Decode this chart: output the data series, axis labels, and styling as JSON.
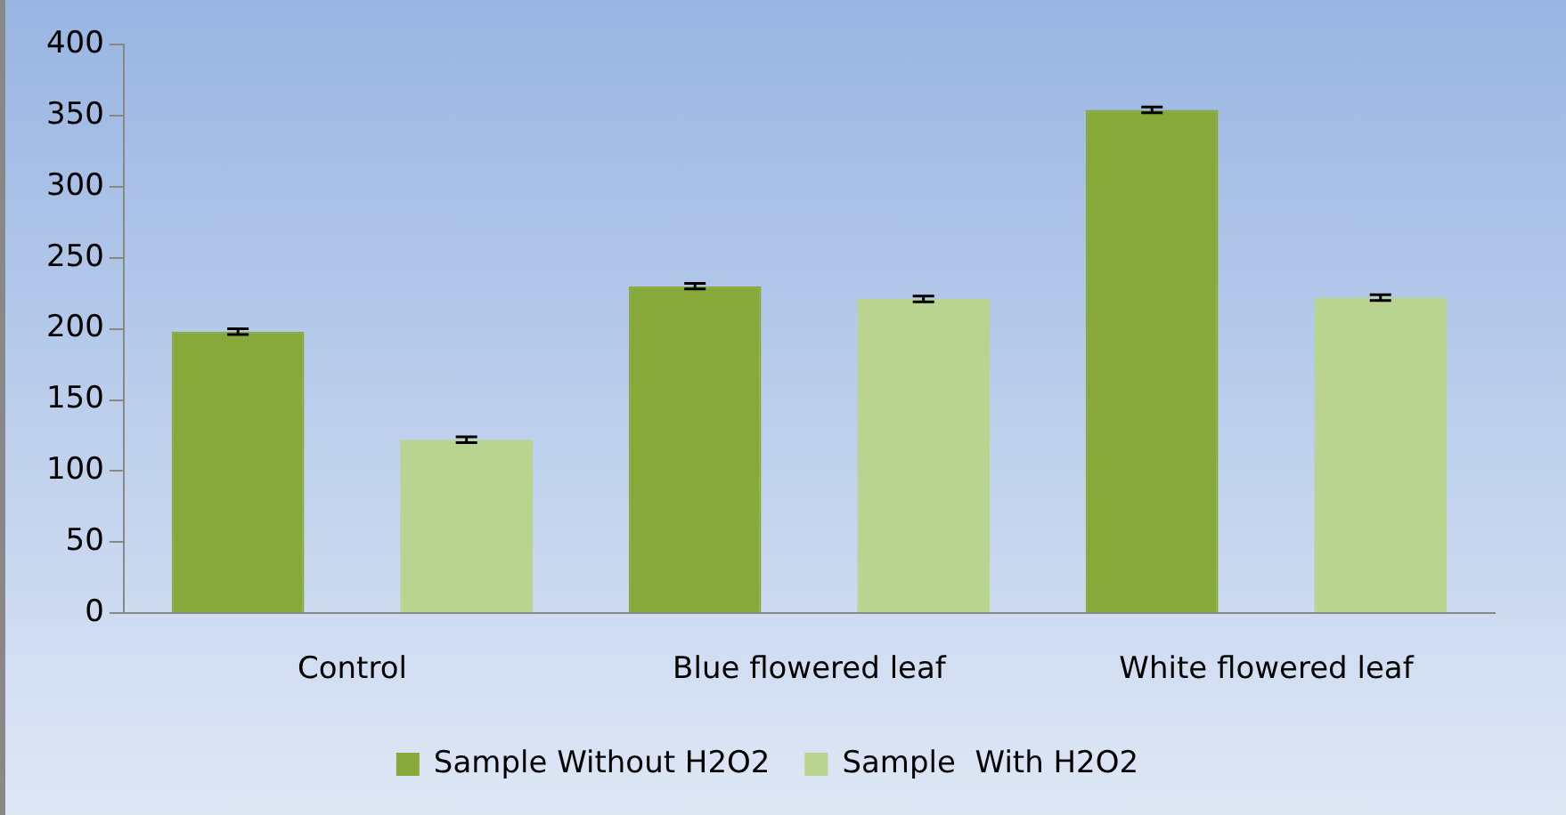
{
  "chart_data": {
    "type": "bar",
    "categories": [
      "Control",
      "Blue flowered leaf",
      "White flowered leaf"
    ],
    "series": [
      {
        "name": "Sample Without H2O2",
        "color": "#86a93a",
        "values": [
          198,
          230,
          354
        ],
        "errors": [
          2,
          2,
          2
        ]
      },
      {
        "name": "Sample  With H2O2",
        "color": "#b8d48e",
        "values": [
          122,
          221,
          222
        ],
        "errors": [
          2,
          2,
          2
        ]
      }
    ],
    "ylim": [
      0,
      400
    ],
    "yticks": [
      0,
      50,
      100,
      150,
      200,
      250,
      300,
      350,
      400
    ],
    "grid": false,
    "legend": "bottom"
  }
}
